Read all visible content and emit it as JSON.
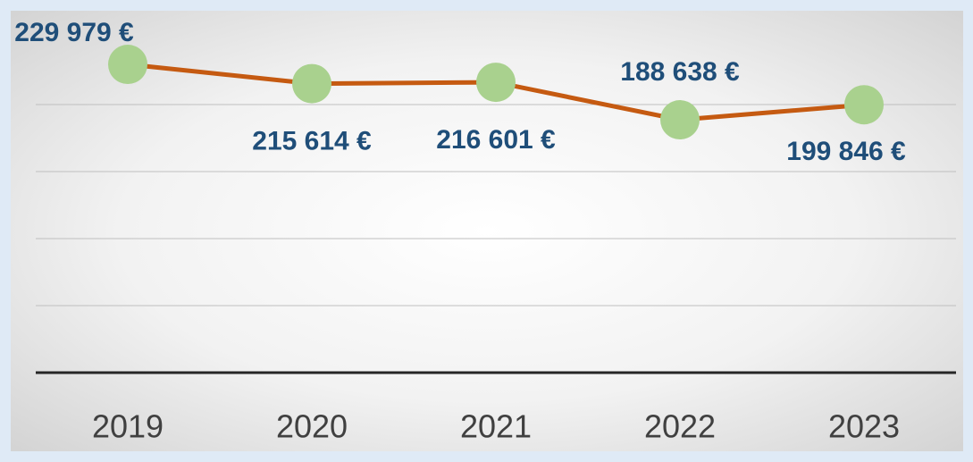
{
  "chart_data": {
    "type": "line",
    "categories": [
      "2019",
      "2020",
      "2021",
      "2022",
      "2023"
    ],
    "series": [
      {
        "name": null,
        "color": "#c55a11",
        "marker_color": "#a9d18e",
        "values": [
          229979,
          215614,
          216601,
          188638,
          199846
        ],
        "value_labels": [
          "229 979 €",
          "215 614 €",
          "216 601 €",
          "188 638 €",
          "199 846 €"
        ]
      }
    ],
    "ylim": [
      0,
      250000
    ],
    "yticks": [
      0,
      50000,
      100000,
      150000,
      200000
    ],
    "grid": true
  }
}
